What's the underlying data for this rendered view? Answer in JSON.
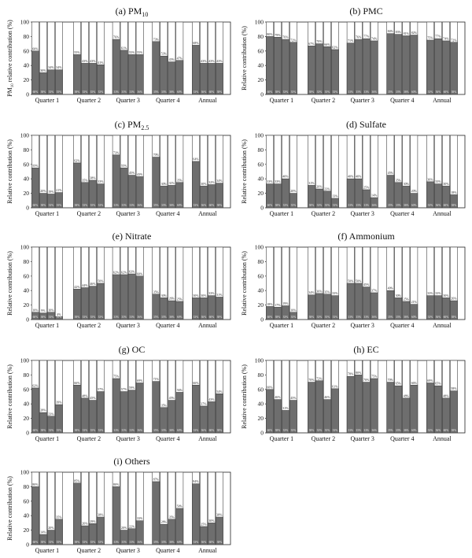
{
  "figure": {
    "colors": {
      "bar": "#6e6e6e",
      "outline": "#444444",
      "label": "#222222"
    },
    "bar_labels": [
      "60%",
      "38%",
      "33%",
      "35%",
      "33%",
      "36%"
    ]
  },
  "chart_data": [
    {
      "id": "a",
      "type": "bar",
      "stacked": true,
      "title": "(a) PM",
      "title_sub": "10",
      "ylabel": "PM",
      "ylabel_sub": "10",
      "ylabel_rest": " relative contribution (%)",
      "ylim": [
        0,
        100
      ],
      "yticks": [
        0,
        20,
        40,
        60,
        80,
        100
      ],
      "categories": [
        "Quarter 1",
        "Quarter 2",
        "Quarter 3",
        "Quarter 4",
        "Annual"
      ],
      "values": [
        [
          60,
          30,
          34,
          34
        ],
        [
          55,
          43,
          43,
          41
        ],
        [
          76,
          61,
          55,
          55
        ],
        [
          73,
          53,
          45,
          47
        ],
        [
          68,
          43,
          43,
          43
        ]
      ],
      "top_labels": [
        [
          "60%",
          "30%",
          "34%",
          "34%"
        ],
        [
          "55%",
          "43%",
          "43%",
          "41%"
        ],
        [
          "76%",
          "61%",
          "55%",
          "55%"
        ],
        [
          "73%",
          "53%",
          "45%",
          "47%"
        ],
        [
          "68%",
          "43%",
          "43%",
          "43%"
        ]
      ]
    },
    {
      "id": "b",
      "type": "bar",
      "stacked": true,
      "title": "(b) PMC",
      "ylabel": "Relative contribution (%)",
      "ylim": [
        0,
        100
      ],
      "yticks": [
        0,
        20,
        40,
        60,
        80,
        100
      ],
      "categories": [
        "Quarter 1",
        "Quarter 2",
        "Quarter 3",
        "Quarter 4",
        "Annual"
      ],
      "values": [
        [
          80,
          79,
          76,
          72
        ],
        [
          67,
          70,
          66,
          62
        ],
        [
          71,
          76,
          77,
          74
        ],
        [
          84,
          83,
          81,
          82
        ],
        [
          75,
          77,
          74,
          72
        ]
      ],
      "top_labels": [
        [
          "80%",
          "79%",
          "76%",
          "72%"
        ],
        [
          "67%",
          "70%",
          "66%",
          "62%"
        ],
        [
          "71%",
          "76%",
          "77%",
          "74%"
        ],
        [
          "84%",
          "83%",
          "81%",
          "82%"
        ],
        [
          "75%",
          "77%",
          "74%",
          "72%"
        ]
      ]
    },
    {
      "id": "c",
      "type": "bar",
      "stacked": true,
      "title": "(c) PM",
      "title_sub": "2.5",
      "ylabel": "Relative contribution (%)",
      "ylim": [
        0,
        100
      ],
      "yticks": [
        0,
        20,
        40,
        60,
        80,
        100
      ],
      "categories": [
        "Quarter 1",
        "Quarter 2",
        "Quarter 3",
        "Quarter 4",
        "Annual"
      ],
      "values": [
        [
          55,
          20,
          19,
          21
        ],
        [
          62,
          35,
          38,
          33
        ],
        [
          73,
          55,
          45,
          43
        ],
        [
          70,
          30,
          31,
          35
        ],
        [
          64,
          30,
          32,
          34
        ]
      ],
      "top_labels": [
        [
          "55%",
          "20%",
          "19%",
          "21%"
        ],
        [
          "62%",
          "35%",
          "38%",
          "33%"
        ],
        [
          "73%",
          "55%",
          "45%",
          "43%"
        ],
        [
          "70%",
          "30%",
          "31%",
          "35%"
        ],
        [
          "64%",
          "30%",
          "32%",
          "34%"
        ]
      ]
    },
    {
      "id": "d",
      "type": "bar",
      "stacked": true,
      "title": "(d) Sulfate",
      "ylabel": "Relative contribution (%)",
      "ylim": [
        0,
        100
      ],
      "yticks": [
        0,
        20,
        40,
        60,
        80,
        100
      ],
      "categories": [
        "Quarter 1",
        "Quarter 2",
        "Quarter 3",
        "Quarter 4",
        "Annual"
      ],
      "values": [
        [
          33,
          33,
          40,
          20
        ],
        [
          31,
          26,
          23,
          13
        ],
        [
          40,
          40,
          25,
          14
        ],
        [
          45,
          35,
          30,
          20
        ],
        [
          36,
          33,
          30,
          18
        ]
      ],
      "top_labels": [
        [
          "33%",
          "33%",
          "40%",
          "20%"
        ],
        [
          "31%",
          "26%",
          "23%",
          "13%"
        ],
        [
          "40%",
          "40%",
          "25%",
          "14%"
        ],
        [
          "45%",
          "35%",
          "30%",
          "20%"
        ],
        [
          "36%",
          "33%",
          "30%",
          "18%"
        ]
      ]
    },
    {
      "id": "e",
      "type": "bar",
      "stacked": true,
      "title": "(e) Nitrate",
      "ylabel": "Relative contribution (%)",
      "ylim": [
        0,
        100
      ],
      "yticks": [
        0,
        20,
        40,
        60,
        80,
        100
      ],
      "categories": [
        "Quarter 1",
        "Quarter 2",
        "Quarter 3",
        "Quarter 4",
        "Annual"
      ],
      "values": [
        [
          10,
          9,
          10,
          4
        ],
        [
          42,
          44,
          46,
          50
        ],
        [
          62,
          62,
          63,
          60
        ],
        [
          35,
          30,
          26,
          25
        ],
        [
          30,
          30,
          33,
          31
        ]
      ],
      "top_labels": [
        [
          "10%",
          "9%",
          "10%",
          "4%"
        ],
        [
          "42%",
          "44%",
          "46%",
          "50%"
        ],
        [
          "62%",
          "62%",
          "63%",
          "60%"
        ],
        [
          "35%",
          "30%",
          "26%",
          "25%"
        ],
        [
          "30%",
          "30%",
          "33%",
          "31%"
        ]
      ]
    },
    {
      "id": "f",
      "type": "bar",
      "stacked": true,
      "title": "(f) Ammonium",
      "ylabel": "Relative contribution (%)",
      "ylim": [
        0,
        100
      ],
      "yticks": [
        0,
        20,
        40,
        60,
        80,
        100
      ],
      "categories": [
        "Quarter 1",
        "Quarter 2",
        "Quarter 3",
        "Quarter 4",
        "Annual"
      ],
      "values": [
        [
          18,
          17,
          19,
          10
        ],
        [
          34,
          36,
          35,
          33
        ],
        [
          50,
          50,
          45,
          37
        ],
        [
          40,
          30,
          25,
          21
        ],
        [
          33,
          33,
          30,
          26
        ]
      ],
      "top_labels": [
        [
          "18%",
          "17%",
          "19%",
          "10%"
        ],
        [
          "34%",
          "36%",
          "35%",
          "33%"
        ],
        [
          "50%",
          "50%",
          "45%",
          "37%"
        ],
        [
          "40%",
          "30%",
          "25%",
          "21%"
        ],
        [
          "33%",
          "33%",
          "30%",
          "26%"
        ]
      ]
    },
    {
      "id": "g",
      "type": "bar",
      "stacked": true,
      "title": "(g) OC",
      "ylabel": "Relative contribution (%)",
      "ylim": [
        0,
        100
      ],
      "yticks": [
        0,
        20,
        40,
        60,
        80,
        100
      ],
      "categories": [
        "Quarter 1",
        "Quarter 2",
        "Quarter 3",
        "Quarter 4",
        "Annual"
      ],
      "values": [
        [
          62,
          28,
          23,
          39
        ],
        [
          66,
          48,
          45,
          57
        ],
        [
          75,
          57,
          59,
          69
        ],
        [
          71,
          35,
          45,
          56
        ],
        [
          66,
          37,
          43,
          54
        ]
      ],
      "top_labels": [
        [
          "62%",
          "28%",
          "23%",
          "39%"
        ],
        [
          "66%",
          "48%",
          "45%",
          "57%"
        ],
        [
          "75%",
          "57%",
          "59%",
          "69%"
        ],
        [
          "71%",
          "35%",
          "45%",
          "56%"
        ],
        [
          "66%",
          "37%",
          "43%",
          "54%"
        ]
      ]
    },
    {
      "id": "h",
      "type": "bar",
      "stacked": true,
      "title": "(h) EC",
      "ylabel": "Relative contribution (%)",
      "ylim": [
        0,
        100
      ],
      "yticks": [
        0,
        20,
        40,
        60,
        80,
        100
      ],
      "categories": [
        "Quarter 1",
        "Quarter 2",
        "Quarter 3",
        "Quarter 4",
        "Annual"
      ],
      "values": [
        [
          60,
          46,
          31,
          45
        ],
        [
          70,
          72,
          46,
          61
        ],
        [
          78,
          80,
          70,
          75
        ],
        [
          70,
          65,
          48,
          66
        ],
        [
          69,
          65,
          48,
          58
        ]
      ],
      "top_labels": [
        [
          "60%",
          "46%",
          "31%",
          "45%"
        ],
        [
          "70%",
          "72%",
          "46%",
          "61%"
        ],
        [
          "78%",
          "80%",
          "70%",
          "75%"
        ],
        [
          "70%",
          "65%",
          "48%",
          "66%"
        ],
        [
          "69%",
          "65%",
          "48%",
          "58%"
        ]
      ]
    },
    {
      "id": "i",
      "type": "bar",
      "stacked": true,
      "title": "(i) Others",
      "ylabel": "Relative contribution (%)",
      "ylim": [
        0,
        100
      ],
      "yticks": [
        0,
        20,
        40,
        60,
        80,
        100
      ],
      "categories": [
        "Quarter 1",
        "Quarter 2",
        "Quarter 3",
        "Quarter 4",
        "Annual"
      ],
      "values": [
        [
          80,
          14,
          20,
          35
        ],
        [
          85,
          26,
          29,
          38
        ],
        [
          80,
          20,
          22,
          33
        ],
        [
          87,
          28,
          35,
          50
        ],
        [
          84,
          25,
          30,
          38
        ]
      ],
      "top_labels": [
        [
          "80%",
          "14%",
          "20%",
          "35%"
        ],
        [
          "85%",
          "26%",
          "29%",
          "38%"
        ],
        [
          "80%",
          "20%",
          "22%",
          "33%"
        ],
        [
          "87%",
          "28%",
          "35%",
          "50%"
        ],
        [
          "84%",
          "25%",
          "30%",
          "38%"
        ]
      ]
    }
  ]
}
